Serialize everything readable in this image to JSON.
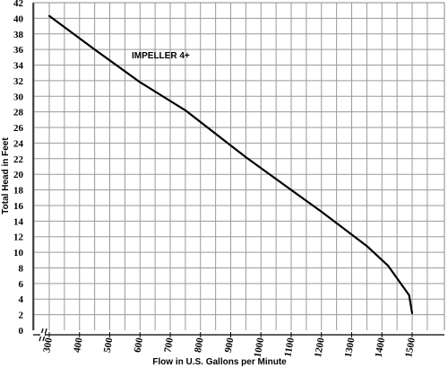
{
  "chart_data": {
    "type": "line",
    "xlabel": "Flow in U.S. Gallons per Minute",
    "ylabel": "Total Head in Feet",
    "annotation": "IMPELLER 4+",
    "x_ticks": [
      300,
      400,
      500,
      600,
      700,
      800,
      900,
      1000,
      1100,
      1200,
      1300,
      1400,
      1500
    ],
    "y_ticks": [
      0,
      2,
      4,
      6,
      8,
      10,
      12,
      14,
      16,
      18,
      20,
      22,
      24,
      26,
      28,
      30,
      32,
      34,
      36,
      38,
      40,
      42
    ],
    "xlim": [
      270,
      1560
    ],
    "ylim": [
      0,
      42
    ],
    "x_axis_break": true,
    "grid": true,
    "series": [
      {
        "values": [
          {
            "x": 300,
            "y": 40.3
          },
          {
            "x": 450,
            "y": 36.0
          },
          {
            "x": 600,
            "y": 31.8
          },
          {
            "x": 700,
            "y": 29.4
          },
          {
            "x": 750,
            "y": 28.2
          },
          {
            "x": 850,
            "y": 25.2
          },
          {
            "x": 950,
            "y": 22.2
          },
          {
            "x": 1100,
            "y": 18.0
          },
          {
            "x": 1200,
            "y": 15.2
          },
          {
            "x": 1350,
            "y": 10.8
          },
          {
            "x": 1420,
            "y": 8.3
          },
          {
            "x": 1490,
            "y": 4.5
          },
          {
            "x": 1500,
            "y": 2.2
          }
        ]
      }
    ]
  }
}
